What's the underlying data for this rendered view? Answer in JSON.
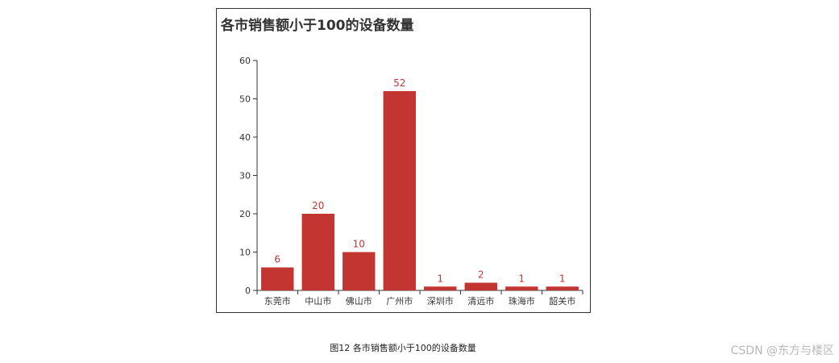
{
  "chart_data": {
    "type": "bar",
    "title": "各市销售额小于100的设备数量",
    "categories": [
      "东莞市",
      "中山市",
      "佛山市",
      "广州市",
      "深圳市",
      "清远市",
      "珠海市",
      "韶关市"
    ],
    "values": [
      6,
      20,
      10,
      52,
      1,
      2,
      1,
      1
    ],
    "xlabel": "",
    "ylabel": "",
    "ylim": [
      0,
      60
    ],
    "yticks": [
      0,
      10,
      20,
      30,
      40,
      50,
      60
    ],
    "grid": false,
    "data_labels": true,
    "bar_color": "#c23531",
    "label_color": "#c23531"
  },
  "caption": "图12 各市销售额小于100的设备数量",
  "watermark": "CSDN @东方与楼区"
}
